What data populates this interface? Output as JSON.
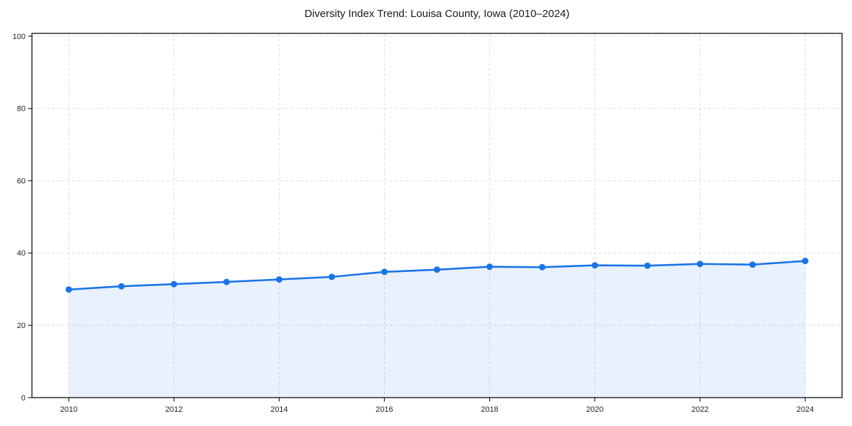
{
  "chart_data": {
    "type": "line",
    "title": "Diversity Index Trend: Louisa County, Iowa (2010–2024)",
    "series": [
      {
        "name": "Diversity Index",
        "x": [
          2010,
          2011,
          2012,
          2013,
          2014,
          2015,
          2016,
          2017,
          2018,
          2019,
          2020,
          2021,
          2022,
          2023,
          2024
        ],
        "values": [
          29.9,
          30.8,
          31.4,
          32.0,
          32.7,
          33.4,
          34.8,
          35.4,
          36.2,
          36.1,
          36.6,
          36.5,
          37.0,
          36.8,
          37.8
        ]
      }
    ],
    "xlabel": "",
    "ylabel": "",
    "xticks": [
      2010,
      2012,
      2014,
      2016,
      2018,
      2020,
      2022,
      2024
    ],
    "yticks": [
      0,
      20,
      40,
      60,
      80,
      100
    ],
    "xlim": [
      2009.3,
      2024.7
    ],
    "ylim": [
      0,
      100
    ],
    "grid": "dashed",
    "legend": "none",
    "area_fill": true,
    "marker": "circle",
    "colors": {
      "line": "#1a73e8",
      "marker": "#1a73e8",
      "fill": "#1a73e8",
      "fill_opacity": "0.10",
      "grid": "#dddddd",
      "axis": "#1f1f1f",
      "tick_text": "#1f1f1f",
      "background": "#ffffff"
    }
  }
}
